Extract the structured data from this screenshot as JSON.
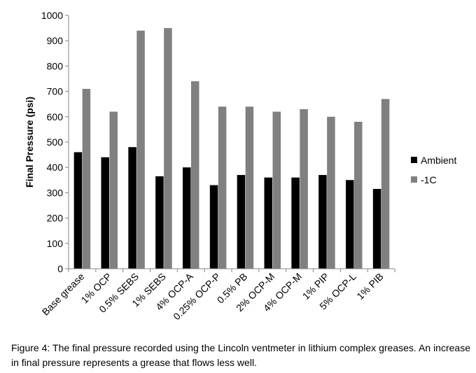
{
  "chart_data": {
    "type": "bar",
    "ylabel": "Final Pressure (psi)",
    "ylim": [
      0,
      1000
    ],
    "ytick_step": 100,
    "grid": false,
    "legend_position": "right",
    "categories": [
      "Base grease",
      "1% OCP",
      "0.5% SEBS",
      "1% SEBS",
      "4% OCP-A",
      "0.25% OCP-P",
      "0.5% PB",
      "2% OCP-M",
      "4% OCP-M",
      "1% PIP",
      "5% OCP-L",
      "1% PIB"
    ],
    "series": [
      {
        "name": "Ambient",
        "color": "#000000",
        "values": [
          460,
          440,
          480,
          365,
          400,
          330,
          370,
          360,
          360,
          370,
          350,
          315
        ]
      },
      {
        "name": "-1C",
        "color": "#808080",
        "values": [
          710,
          620,
          940,
          950,
          740,
          640,
          640,
          620,
          630,
          600,
          580,
          670
        ]
      }
    ]
  },
  "caption": "Figure 4: The final pressure recorded using the Lincoln ventmeter in lithium complex greases. An increase in final pressure represents a grease that flows less well."
}
